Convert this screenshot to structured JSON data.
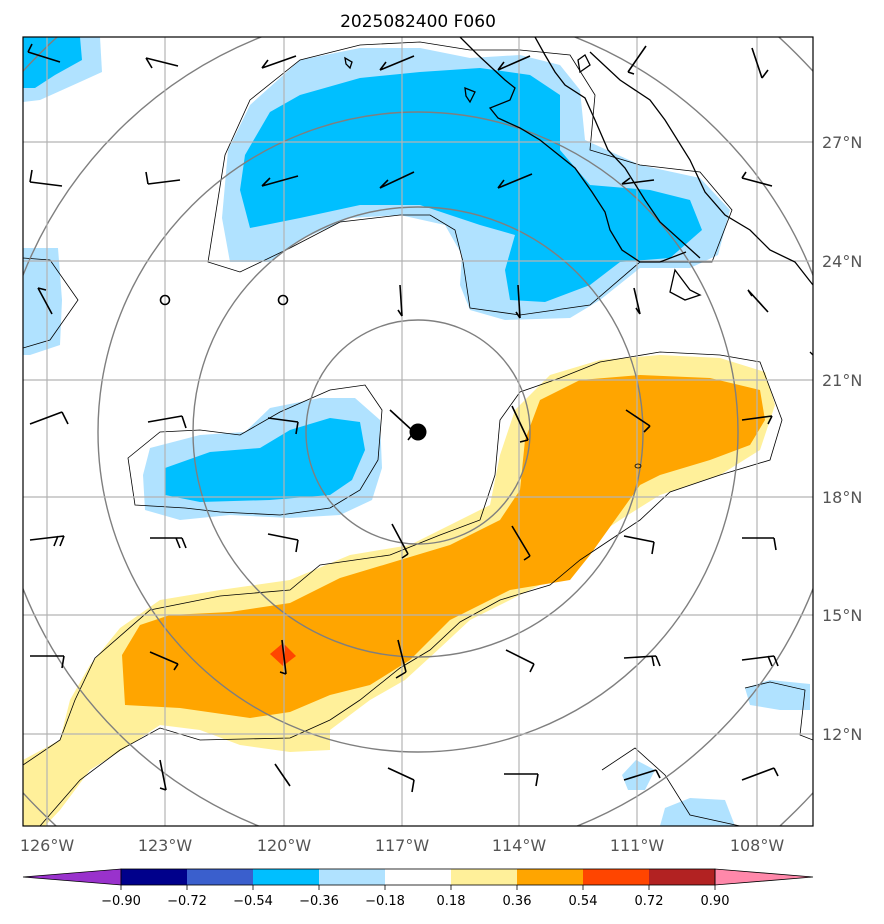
{
  "title": "2025082400 F060",
  "lat_labels": [
    "27°N",
    "24°N",
    "21°N",
    "18°N",
    "15°N",
    "12°N"
  ],
  "lon_labels": [
    "126°W",
    "123°W",
    "120°W",
    "117°W",
    "114°W",
    "111°W",
    "108°W"
  ],
  "colorbar": {
    "ticks": [
      "−0.90",
      "−0.72",
      "−0.54",
      "−0.36",
      "−0.18",
      "0.18",
      "0.36",
      "0.54",
      "0.72",
      "0.90"
    ],
    "colors": [
      "#9932cc",
      "#00008b",
      "#3a5fcd",
      "#00bfff",
      "#b0e2ff",
      "#ffffff",
      "#fff09a",
      "#ffa500",
      "#ff4500",
      "#b22222",
      "#ff88aa"
    ]
  },
  "colors": {
    "light_blue": "#b0e2ff",
    "deep_sky_blue": "#00bfff",
    "light_yellow": "#fff09a",
    "orange": "#ffa500",
    "orange_red": "#ff4500",
    "grid": "#b3b3b3",
    "rings": "#7f7f7f"
  },
  "center_marker": "filled-black-circle"
}
